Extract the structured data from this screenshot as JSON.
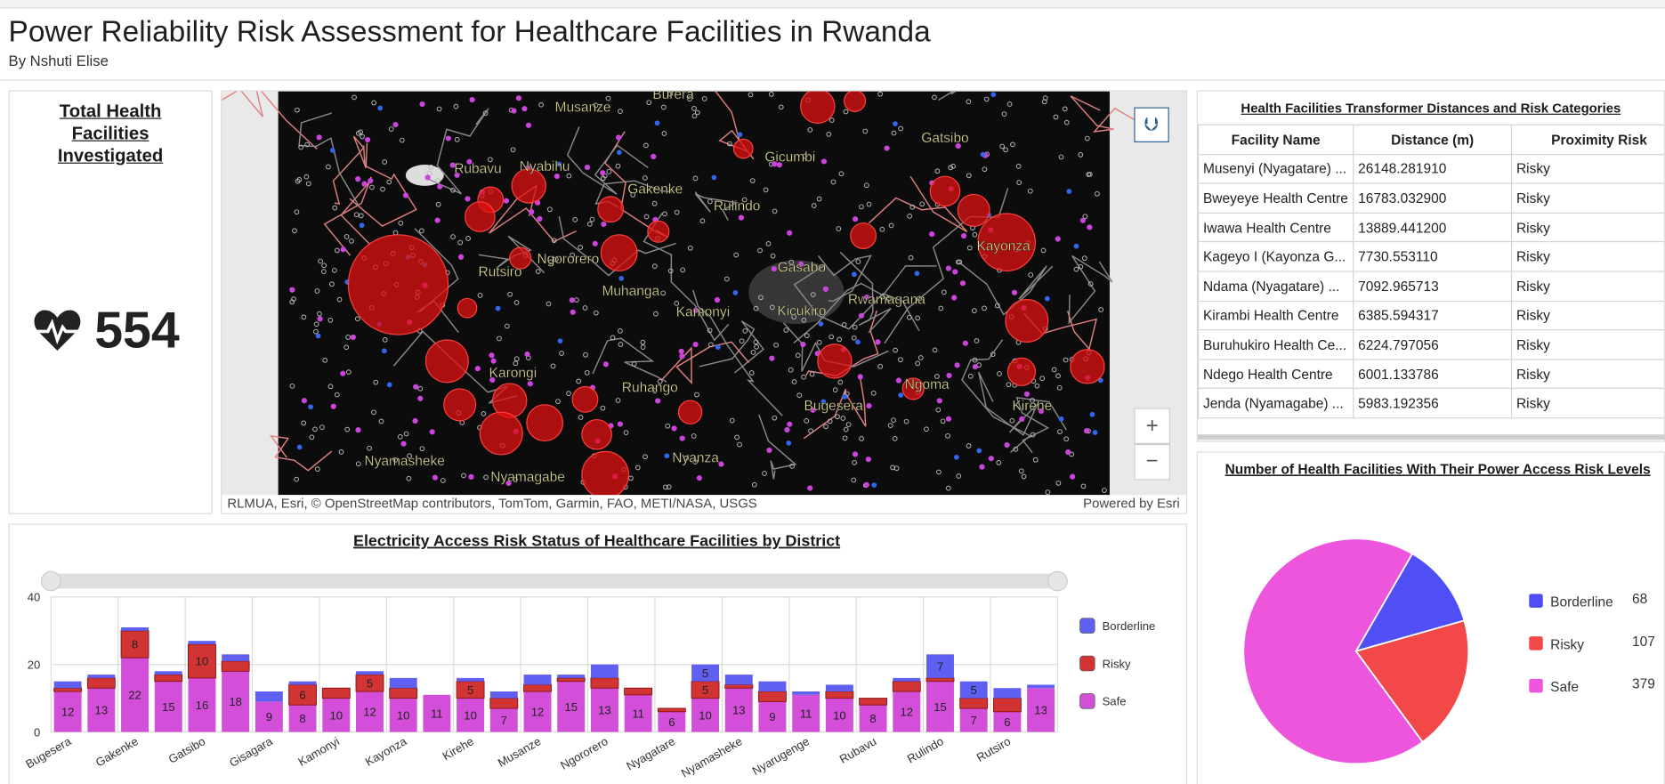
{
  "header": {
    "title": "Power Reliability Risk Assessment for Healthcare Facilities in Rwanda",
    "subtitle": "By Nshuti Elise"
  },
  "indicator": {
    "title": "Total Health Facilities Investigated",
    "value": 554
  },
  "map": {
    "place_labels": [
      "Musanze",
      "Burera",
      "Gatsibo",
      "Rubavu",
      "Nyabihu",
      "Gicumbi",
      "Gakenke",
      "Rulindo",
      "Ngororero",
      "Rutsiro",
      "Kayonza",
      "Gasabo",
      "Muhanga",
      "Rwamagana",
      "Kamonyi",
      "Kicukiro",
      "Karongi",
      "Ruhango",
      "Bugesera",
      "Ngoma",
      "Kirehe",
      "Nyamasheke",
      "Nyanza",
      "Nyamagabe"
    ],
    "attribution": "RLMUA, Esri, © OpenStreetMap contributors, TomTom, Garmin, FAO, METI/NASA, USGS",
    "powered_by": "Powered by Esri"
  },
  "table": {
    "title": "Health Facilities Transformer Distances and Risk Categories",
    "columns": [
      "Facility Name",
      "Distance (m)",
      "Proximity Risk"
    ],
    "rows": [
      [
        "Musenyi (Nyagatare) ...",
        "26148.281910",
        "Risky"
      ],
      [
        "Bweyeye Health Centre",
        "16783.032900",
        "Risky"
      ],
      [
        "Iwawa Health Centre",
        "13889.441200",
        "Risky"
      ],
      [
        "Kageyo I (Kayonza G...",
        "7730.553110",
        "Risky"
      ],
      [
        "Ndama (Nyagatare) ...",
        "7092.965713",
        "Risky"
      ],
      [
        "Kirambi Health Centre",
        "6385.594317",
        "Risky"
      ],
      [
        "Buruhukiro Health Ce...",
        "6224.797056",
        "Risky"
      ],
      [
        "Ndego Health Centre",
        "6001.133786",
        "Risky"
      ],
      [
        "Jenda (Nyamagabe) ...",
        "5983.192356",
        "Risky"
      ]
    ]
  },
  "chart_data": [
    {
      "type": "bar",
      "stacked": true,
      "title": "Electricity Access Risk Status of Healthcare Facilities by District",
      "categories": [
        "Bugesera",
        null,
        "Gakenke",
        null,
        "Gatsibo",
        null,
        "Gisagara",
        null,
        "Kamonyi",
        null,
        "Kayonza",
        null,
        "Kirehe",
        null,
        "Musanze",
        null,
        "Ngororero",
        null,
        "Nyagatare",
        null,
        "Nyamasheke",
        null,
        "Nyarugenge",
        null,
        "Rubavu",
        null,
        "Rulindo",
        null,
        "Rutsiro",
        null
      ],
      "series": [
        {
          "name": "Borderline",
          "color": "#5f5ff2",
          "values": [
            2,
            1,
            1,
            1,
            1,
            2,
            3,
            1,
            0,
            1,
            3,
            0,
            1,
            2,
            3,
            1,
            4,
            0,
            0,
            5,
            3,
            3,
            1,
            2,
            0,
            1,
            7,
            5,
            3,
            1
          ]
        },
        {
          "name": "Risky",
          "color": "#d23434",
          "values": [
            1,
            3,
            8,
            2,
            10,
            3,
            0,
            6,
            3,
            5,
            3,
            0,
            5,
            3,
            2,
            1,
            3,
            2,
            1,
            5,
            1,
            3,
            0,
            2,
            2,
            3,
            1,
            3,
            4,
            0
          ]
        },
        {
          "name": "Safe",
          "color": "#d34fd9",
          "values": [
            12,
            13,
            22,
            15,
            16,
            18,
            9,
            8,
            10,
            12,
            10,
            11,
            10,
            7,
            12,
            15,
            13,
            11,
            6,
            10,
            13,
            9,
            11,
            10,
            8,
            12,
            15,
            7,
            6,
            13
          ]
        }
      ],
      "ylim": [
        0,
        40
      ],
      "yticks": [
        0,
        20,
        40
      ],
      "grid": true
    },
    {
      "type": "pie",
      "title": "Number of Health Facilities With Their Power Access Risk Levels",
      "categories": [
        "Borderline",
        "Risky",
        "Safe"
      ],
      "values": [
        68,
        107,
        379
      ],
      "colors": [
        "#4f4ff5",
        "#f24848",
        "#ee55dd"
      ]
    }
  ]
}
